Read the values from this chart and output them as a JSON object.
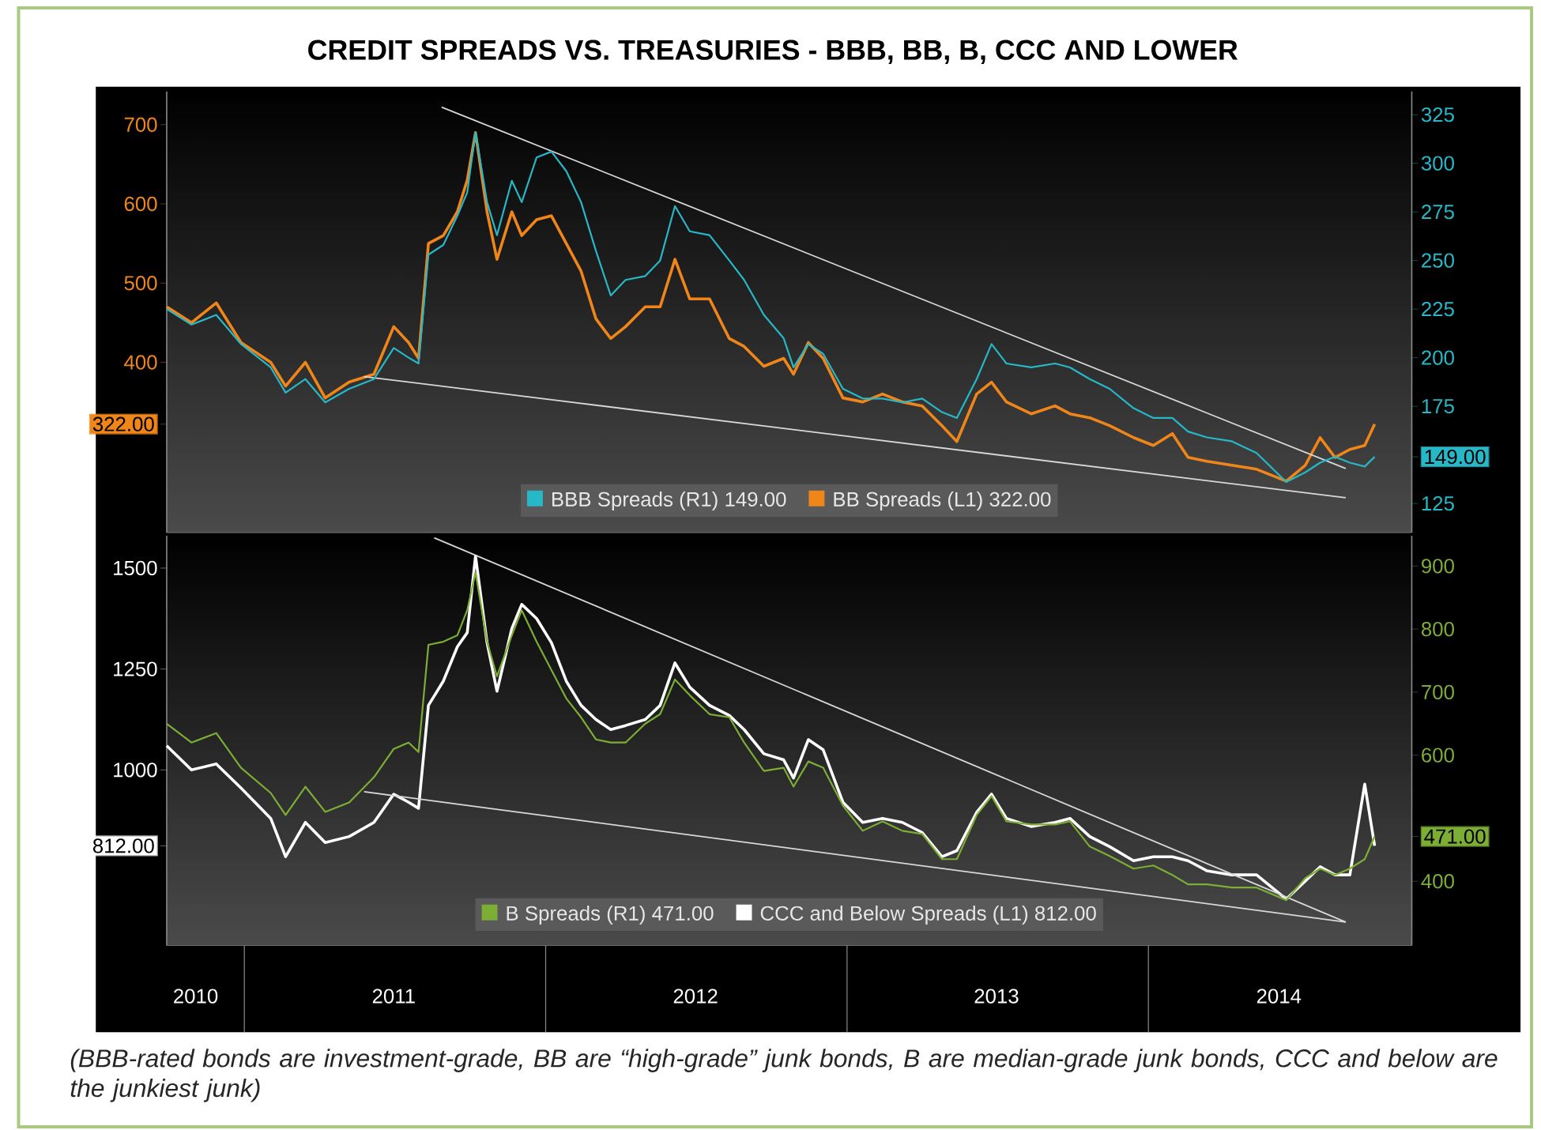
{
  "chart_data": [
    {
      "type": "line",
      "title": "CREDIT SPREADS VS. TREASURIES - BBB, BB, B, CCC AND LOWER",
      "x": [
        "2010-09-29",
        "2010-10-29",
        "2010-11-28",
        "2010-12-28",
        "2011-02-02",
        "2011-02-20",
        "2011-03-16",
        "2011-04-09",
        "2011-05-08",
        "2011-06-07",
        "2011-07-01",
        "2011-07-19",
        "2011-07-31",
        "2011-08-12",
        "2011-08-30",
        "2011-09-16",
        "2011-09-28",
        "2011-10-08",
        "2011-10-22",
        "2011-11-03",
        "2011-11-21",
        "2011-12-03",
        "2011-12-21",
        "2012-01-08",
        "2012-01-26",
        "2012-02-13",
        "2012-03-02",
        "2012-03-20",
        "2012-04-07",
        "2012-05-01",
        "2012-05-19",
        "2012-06-06",
        "2012-06-24",
        "2012-07-18",
        "2012-08-11",
        "2012-08-29",
        "2012-09-22",
        "2012-10-16",
        "2012-10-28",
        "2012-11-15",
        "2012-12-03",
        "2012-12-27",
        "2013-01-20",
        "2013-02-13",
        "2013-03-09",
        "2013-04-02",
        "2013-04-26",
        "2013-05-14",
        "2013-06-07",
        "2013-06-25",
        "2013-07-13",
        "2013-08-12",
        "2013-09-10",
        "2013-09-28",
        "2013-10-22",
        "2013-11-15",
        "2013-12-14",
        "2014-01-07",
        "2014-01-30",
        "2014-02-18",
        "2014-03-13",
        "2014-04-12",
        "2014-05-12",
        "2014-06-17",
        "2014-07-10",
        "2014-07-28",
        "2014-08-15",
        "2014-09-02",
        "2014-09-20",
        "2014-10-02"
      ],
      "xlim": [
        "2010-09-29",
        "2014-11-16"
      ],
      "ylim": [
        185,
        742
      ],
      "yticks": [
        {
          "value": 322,
          "label": "322.00"
        },
        400,
        500,
        600,
        700
      ],
      "y2lim": [
        110,
        337
      ],
      "y2ticks": [
        125,
        {
          "value": 149,
          "label": "149.00"
        },
        175,
        200,
        225,
        250,
        275,
        300,
        325
      ],
      "tick_labels": "y",
      "legend": "bottom",
      "series": [
        {
          "name": "BBB Spreads (R1) 149.00",
          "color": "#27b8c8",
          "axis": "y2",
          "values": [
            225,
            217,
            222,
            207,
            195,
            182,
            189,
            177,
            184,
            189,
            205,
            200,
            197,
            253,
            258,
            273,
            285,
            316,
            280,
            263,
            291,
            280,
            303,
            306,
            296,
            280,
            255,
            232,
            240,
            242,
            250,
            278,
            265,
            263,
            250,
            240,
            222,
            210,
            195,
            207,
            202,
            184,
            179,
            179,
            177,
            179,
            172,
            169,
            189,
            207,
            197,
            195,
            197,
            195,
            189,
            184,
            174,
            169,
            169,
            162,
            159,
            157,
            151,
            136,
            141,
            146,
            149,
            146,
            144,
            149
          ]
        },
        {
          "name": "BB Spreads (L1) 322.00",
          "color": "#f0861a",
          "values": [
            470,
            450,
            475,
            425,
            400,
            370,
            400,
            355,
            375,
            385,
            445,
            425,
            405,
            550,
            560,
            590,
            630,
            690,
            590,
            530,
            590,
            560,
            580,
            585,
            550,
            515,
            455,
            430,
            445,
            470,
            470,
            530,
            480,
            480,
            430,
            420,
            395,
            405,
            385,
            425,
            405,
            355,
            350,
            360,
            350,
            345,
            320,
            300,
            360,
            375,
            350,
            335,
            345,
            335,
            330,
            320,
            305,
            295,
            310,
            280,
            275,
            270,
            265,
            250,
            270,
            305,
            280,
            290,
            295,
            322
          ]
        },
        {
          "color": "#d8d8d8",
          "x": [
            "2011-08-28",
            "2014-08-28"
          ],
          "values": [
            722,
            266
          ]
        },
        {
          "color": "#d8d8d8",
          "x": [
            "2011-05-26",
            "2014-08-28"
          ],
          "values": [
            382,
            229
          ]
        }
      ]
    },
    {
      "type": "line",
      "x": [
        "2010-09-29",
        "2010-10-29",
        "2010-11-28",
        "2010-12-28",
        "2011-02-02",
        "2011-02-20",
        "2011-03-16",
        "2011-04-09",
        "2011-05-08",
        "2011-06-07",
        "2011-07-01",
        "2011-07-19",
        "2011-07-31",
        "2011-08-12",
        "2011-08-30",
        "2011-09-16",
        "2011-09-28",
        "2011-10-08",
        "2011-10-22",
        "2011-11-03",
        "2011-11-21",
        "2011-12-03",
        "2011-12-21",
        "2012-01-08",
        "2012-01-26",
        "2012-02-13",
        "2012-03-02",
        "2012-03-20",
        "2012-04-07",
        "2012-05-01",
        "2012-05-19",
        "2012-06-06",
        "2012-06-24",
        "2012-07-18",
        "2012-08-11",
        "2012-08-29",
        "2012-09-22",
        "2012-10-16",
        "2012-10-28",
        "2012-11-15",
        "2012-12-03",
        "2012-12-27",
        "2013-01-20",
        "2013-02-13",
        "2013-03-09",
        "2013-04-02",
        "2013-04-26",
        "2013-05-14",
        "2013-06-07",
        "2013-06-25",
        "2013-07-13",
        "2013-08-12",
        "2013-09-10",
        "2013-09-28",
        "2013-10-22",
        "2013-11-15",
        "2013-12-14",
        "2014-01-07",
        "2014-01-30",
        "2014-02-18",
        "2014-03-13",
        "2014-04-12",
        "2014-05-12",
        "2014-06-17",
        "2014-07-10",
        "2014-07-28",
        "2014-08-15",
        "2014-09-02",
        "2014-09-20",
        "2014-10-02"
      ],
      "xlim": [
        "2010-09-29",
        "2014-11-16"
      ],
      "xticks": [
        {
          "value": "2010-11-03",
          "label": "2010"
        },
        {
          "value": "2011-07-01",
          "label": "2011"
        },
        {
          "value": "2012-07-01",
          "label": "2012"
        },
        {
          "value": "2013-07-01",
          "label": "2013"
        },
        {
          "value": "2014-06-08",
          "label": "2014"
        }
      ],
      "ylim": [
        565,
        1580
      ],
      "yticks": [
        {
          "value": 812,
          "label": "812.00"
        },
        1000,
        1250,
        1500
      ],
      "y2lim": [
        298,
        948
      ],
      "y2ticks": [
        400,
        {
          "value": 471,
          "label": "471.00"
        },
        600,
        700,
        800,
        900
      ],
      "legend": "bottom",
      "annotations": [
        "(BBB-rated bonds are investment-grade, BB are “high-grade” junk bonds, B are median-grade junk bonds, CCC and below are the junkiest junk)"
      ],
      "series": [
        {
          "name": "B Spreads (R1) 471.00",
          "color": "#7cad35",
          "axis": "y2",
          "values": [
            650,
            620,
            635,
            580,
            540,
            505,
            550,
            510,
            525,
            565,
            610,
            620,
            605,
            775,
            780,
            790,
            830,
            890,
            780,
            725,
            790,
            830,
            780,
            735,
            690,
            660,
            625,
            620,
            620,
            650,
            665,
            720,
            695,
            665,
            660,
            620,
            575,
            580,
            550,
            590,
            580,
            520,
            480,
            495,
            480,
            475,
            435,
            435,
            505,
            535,
            495,
            490,
            490,
            495,
            455,
            440,
            420,
            425,
            410,
            395,
            395,
            390,
            390,
            370,
            405,
            420,
            410,
            420,
            435,
            471
          ]
        },
        {
          "name": "CCC and Below Spreads (L1) 812.00",
          "color": "#ffffff",
          "values": [
            1060,
            1000,
            1015,
            955,
            880,
            785,
            870,
            820,
            835,
            870,
            940,
            920,
            905,
            1160,
            1220,
            1305,
            1340,
            1530,
            1315,
            1195,
            1350,
            1410,
            1375,
            1315,
            1220,
            1160,
            1125,
            1100,
            1110,
            1125,
            1160,
            1265,
            1205,
            1160,
            1135,
            1100,
            1040,
            1025,
            980,
            1075,
            1050,
            920,
            870,
            880,
            870,
            845,
            785,
            800,
            895,
            940,
            880,
            860,
            870,
            880,
            835,
            810,
            775,
            785,
            785,
            775,
            750,
            740,
            740,
            680,
            725,
            760,
            740,
            740,
            965,
            812
          ]
        },
        {
          "color": "#d8d8d8",
          "x": [
            "2011-08-19",
            "2014-08-28"
          ],
          "values": [
            1575,
            623
          ]
        },
        {
          "color": "#d8d8d8",
          "x": [
            "2011-05-26",
            "2014-08-28"
          ],
          "values": [
            946,
            623
          ]
        }
      ]
    }
  ]
}
